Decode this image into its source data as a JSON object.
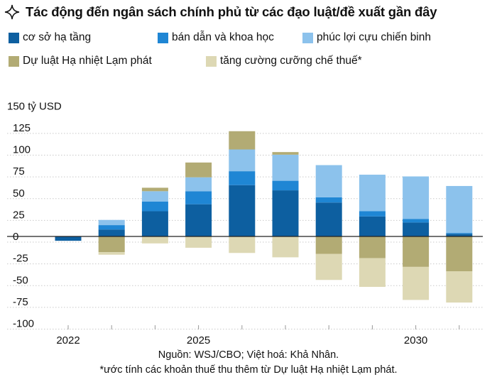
{
  "header": {
    "title": "Tác động đến ngân sách chính phủ từ các đạo luật/đề xuất gần đây",
    "icon": "sparkle-icon"
  },
  "legend": [
    {
      "label": "cơ sở hạ tầng",
      "color": "#0d5fa0"
    },
    {
      "label": "bán dẫn và khoa học",
      "color": "#1f86d4"
    },
    {
      "label": "phúc lợi cựu chiến binh",
      "color": "#8cc2ec"
    },
    {
      "label": "Dự luật Hạ nhiệt Lạm phát",
      "color": "#b2ab74"
    },
    {
      "label": "tăng cường cưỡng chế thuế*",
      "color": "#ddd8b4"
    }
  ],
  "chart_data": {
    "type": "bar",
    "stacked": true,
    "title": "Tác động đến ngân sách chính phủ từ các đạo luật/đề xuất gần đây",
    "ylabel": "150 tỷ USD",
    "ylim": [
      -105,
      150
    ],
    "yticks": [
      125,
      100,
      75,
      50,
      25,
      0,
      -25,
      -50,
      -75,
      -100
    ],
    "ytick_labels": [
      "125",
      "100",
      "75",
      "50",
      "25",
      "0",
      "-25",
      "-50",
      "-75",
      "-100"
    ],
    "ytop_label": "150 tỷ USD",
    "xlabels": [
      {
        "year": 2022,
        "label": "2022"
      },
      {
        "year": 2025,
        "label": "2025"
      },
      {
        "year": 2030,
        "label": "2030"
      }
    ],
    "categories": [
      2022,
      2023,
      2024,
      2025,
      2026,
      2027,
      2028,
      2029,
      2030,
      2031
    ],
    "series": [
      {
        "name": "cơ sở hạ tầng",
        "color": "#0d5fa0",
        "values": [
          -5,
          8,
          29,
          37,
          59,
          53,
          39,
          23,
          16,
          3
        ]
      },
      {
        "name": "bán dẫn và khoa học",
        "color": "#1f86d4",
        "values": [
          0,
          5,
          11,
          15,
          16,
          11,
          6,
          6,
          4,
          1
        ]
      },
      {
        "name": "phúc lợi cựu chiến binh",
        "color": "#8cc2ec",
        "values": [
          0,
          6,
          12,
          16,
          25,
          30,
          37,
          42,
          49,
          54
        ]
      },
      {
        "name": "Dự luật Hạ nhiệt Lạm phát",
        "color": "#b2ab74",
        "values": [
          0,
          -18,
          4,
          17,
          21,
          3,
          -20,
          -25,
          -35,
          -40
        ]
      },
      {
        "name": "tăng cường cưỡng chế thuế*",
        "color": "#ddd8b4",
        "values": [
          0,
          -3,
          -8,
          -13,
          -19,
          -24,
          -30,
          -33,
          -38,
          -36
        ]
      }
    ]
  },
  "footer": {
    "source": "Nguồn: WSJ/CBO; Việt hoá: Khả Nhân.",
    "note": "*ước tính các khoản thuế thu thêm từ Dự luật Hạ nhiệt Lạm phát."
  }
}
